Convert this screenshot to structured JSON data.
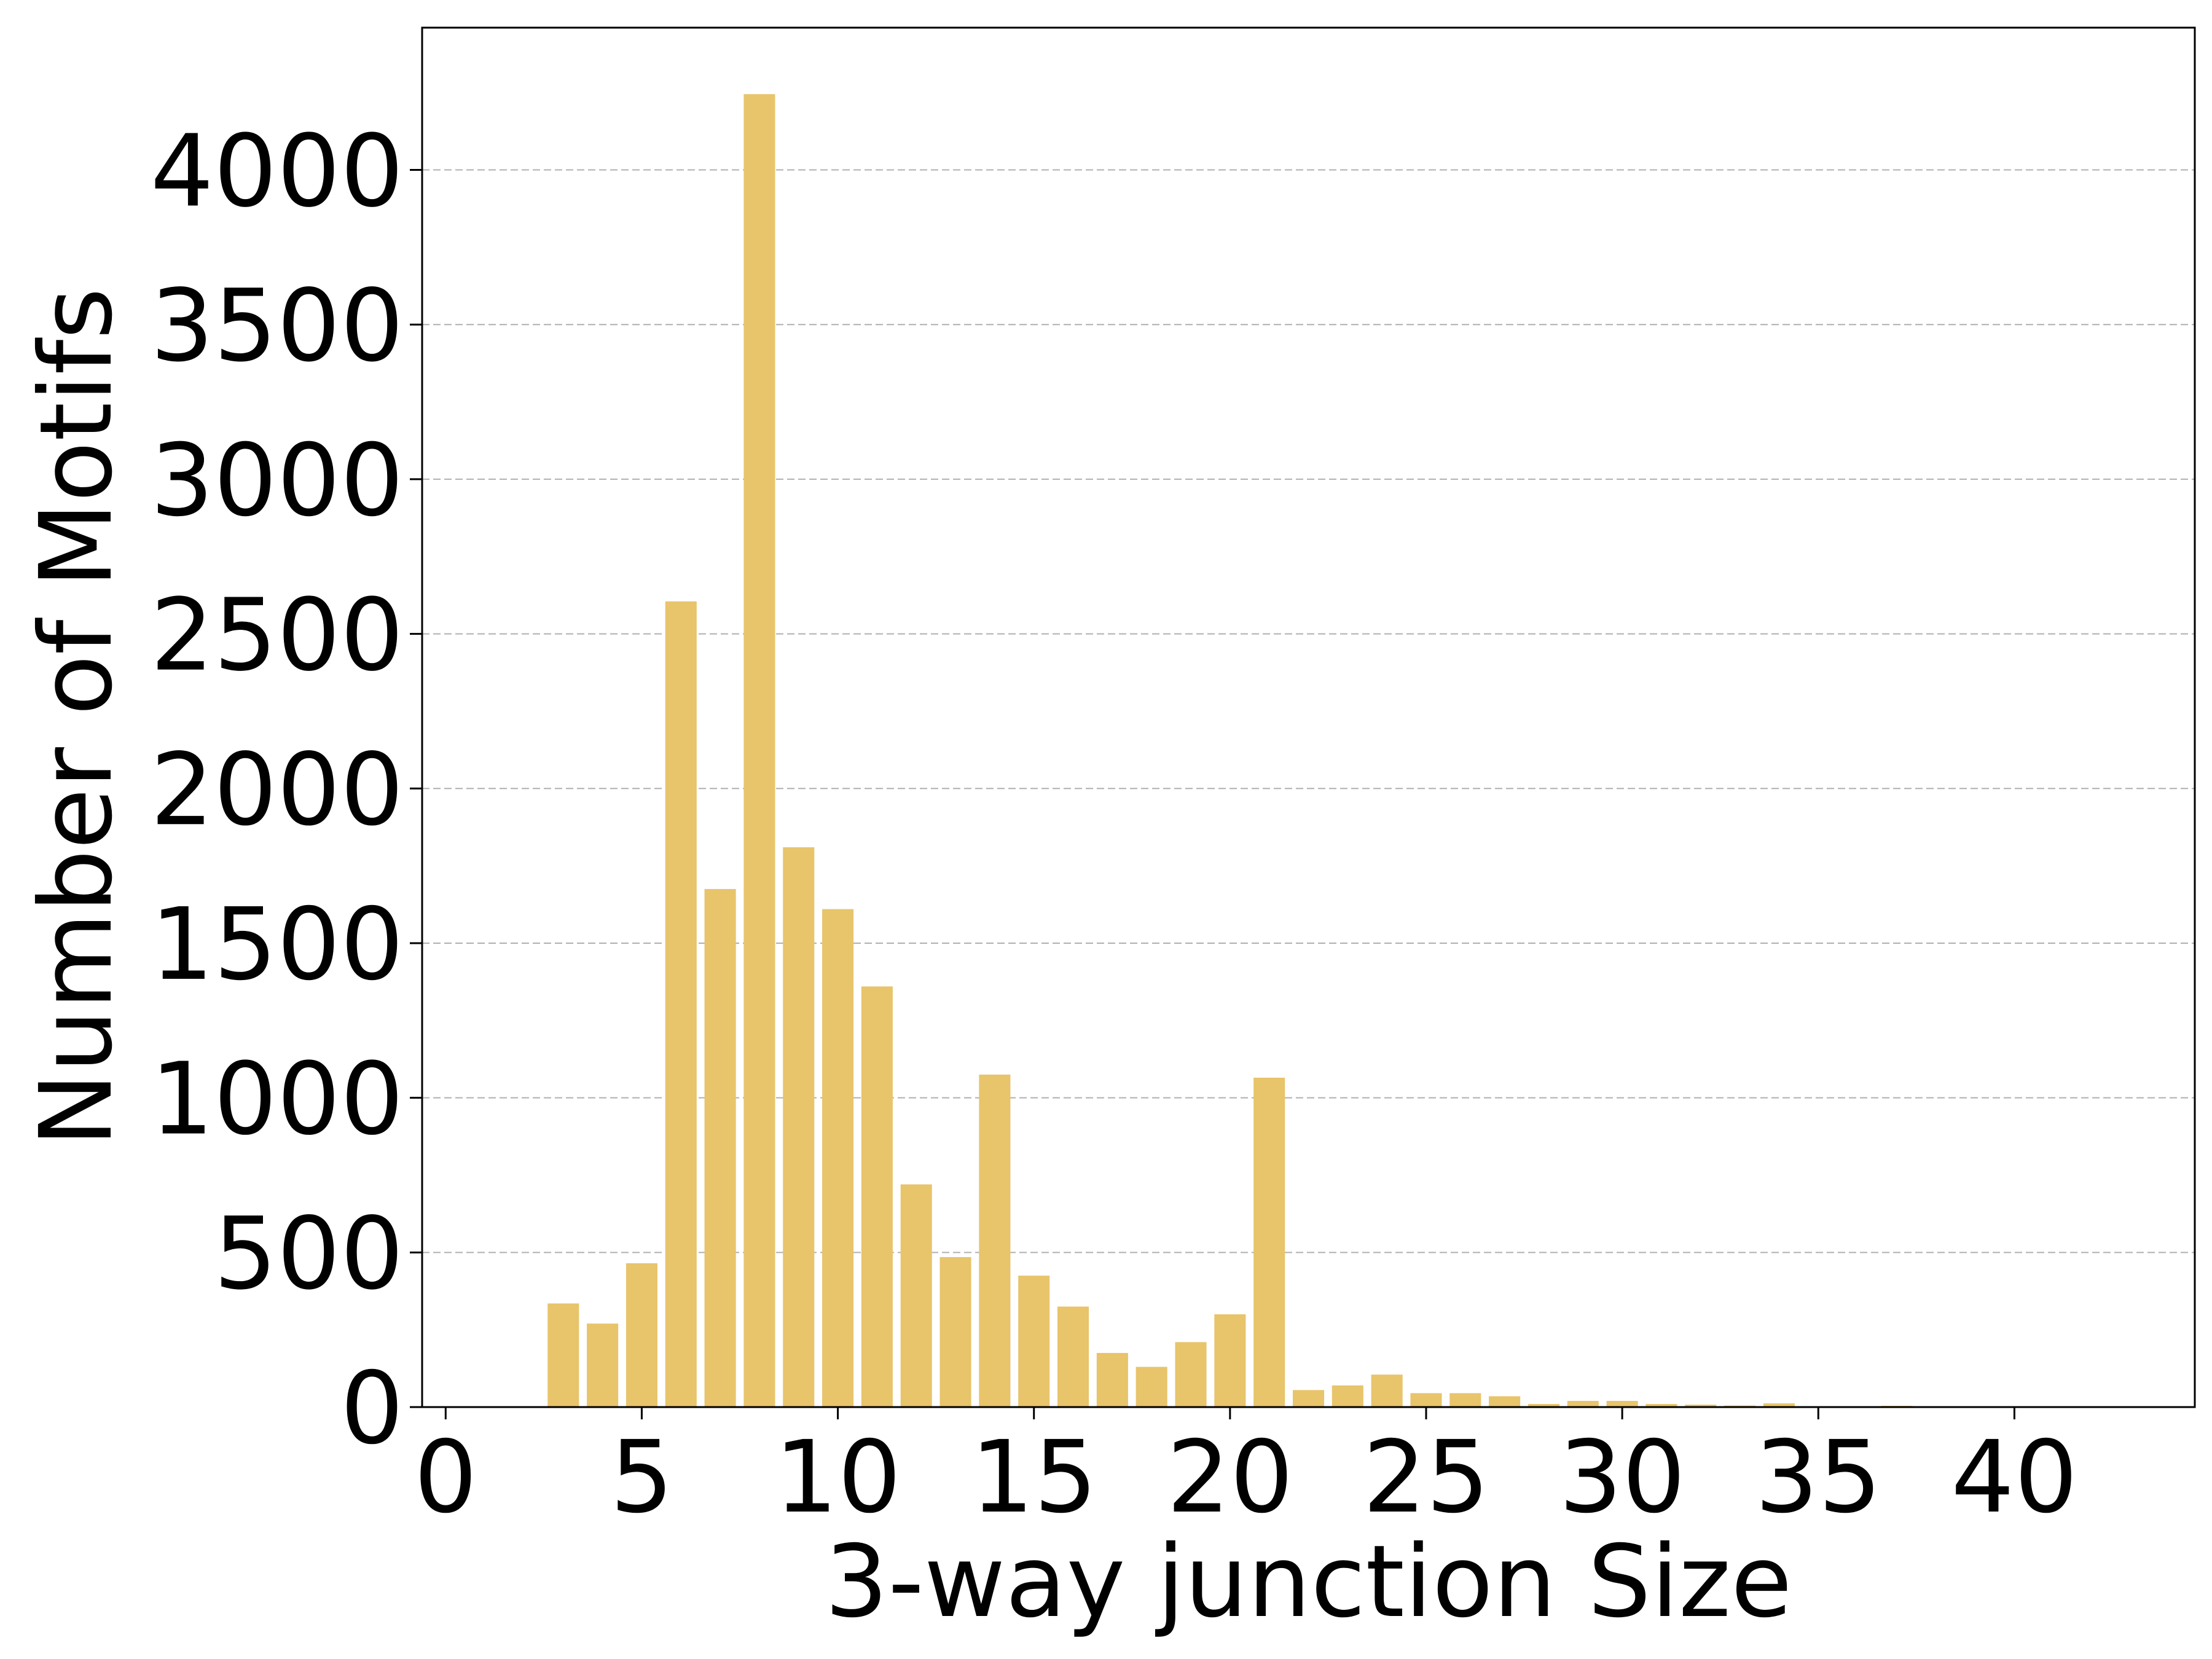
{
  "chart_data": {
    "type": "bar",
    "title": "",
    "xlabel": "3-way junction Size",
    "ylabel": "Number of Motifs",
    "bar_color": "#e8c46b",
    "grid": {
      "y": true,
      "x": false,
      "style": "dashed"
    },
    "xlim": [
      -0.6,
      44.6
    ],
    "ylim": [
      0,
      4460
    ],
    "xticks": [
      0,
      5,
      10,
      15,
      20,
      25,
      30,
      35,
      40
    ],
    "yticks": [
      0,
      500,
      1000,
      1500,
      2000,
      2500,
      3000,
      3500,
      4000
    ],
    "x": [
      3,
      4,
      5,
      6,
      7,
      8,
      9,
      10,
      11,
      12,
      13,
      14,
      15,
      16,
      17,
      18,
      19,
      20,
      21,
      22,
      23,
      24,
      25,
      26,
      27,
      28,
      29,
      30,
      31,
      32,
      33,
      34,
      35,
      36,
      37
    ],
    "values": [
      335,
      270,
      465,
      2605,
      1675,
      4245,
      1810,
      1610,
      1360,
      720,
      485,
      1075,
      425,
      325,
      175,
      130,
      210,
      300,
      1065,
      55,
      70,
      105,
      45,
      45,
      35,
      10,
      20,
      20,
      10,
      8,
      5,
      12,
      3,
      2,
      4
    ]
  }
}
